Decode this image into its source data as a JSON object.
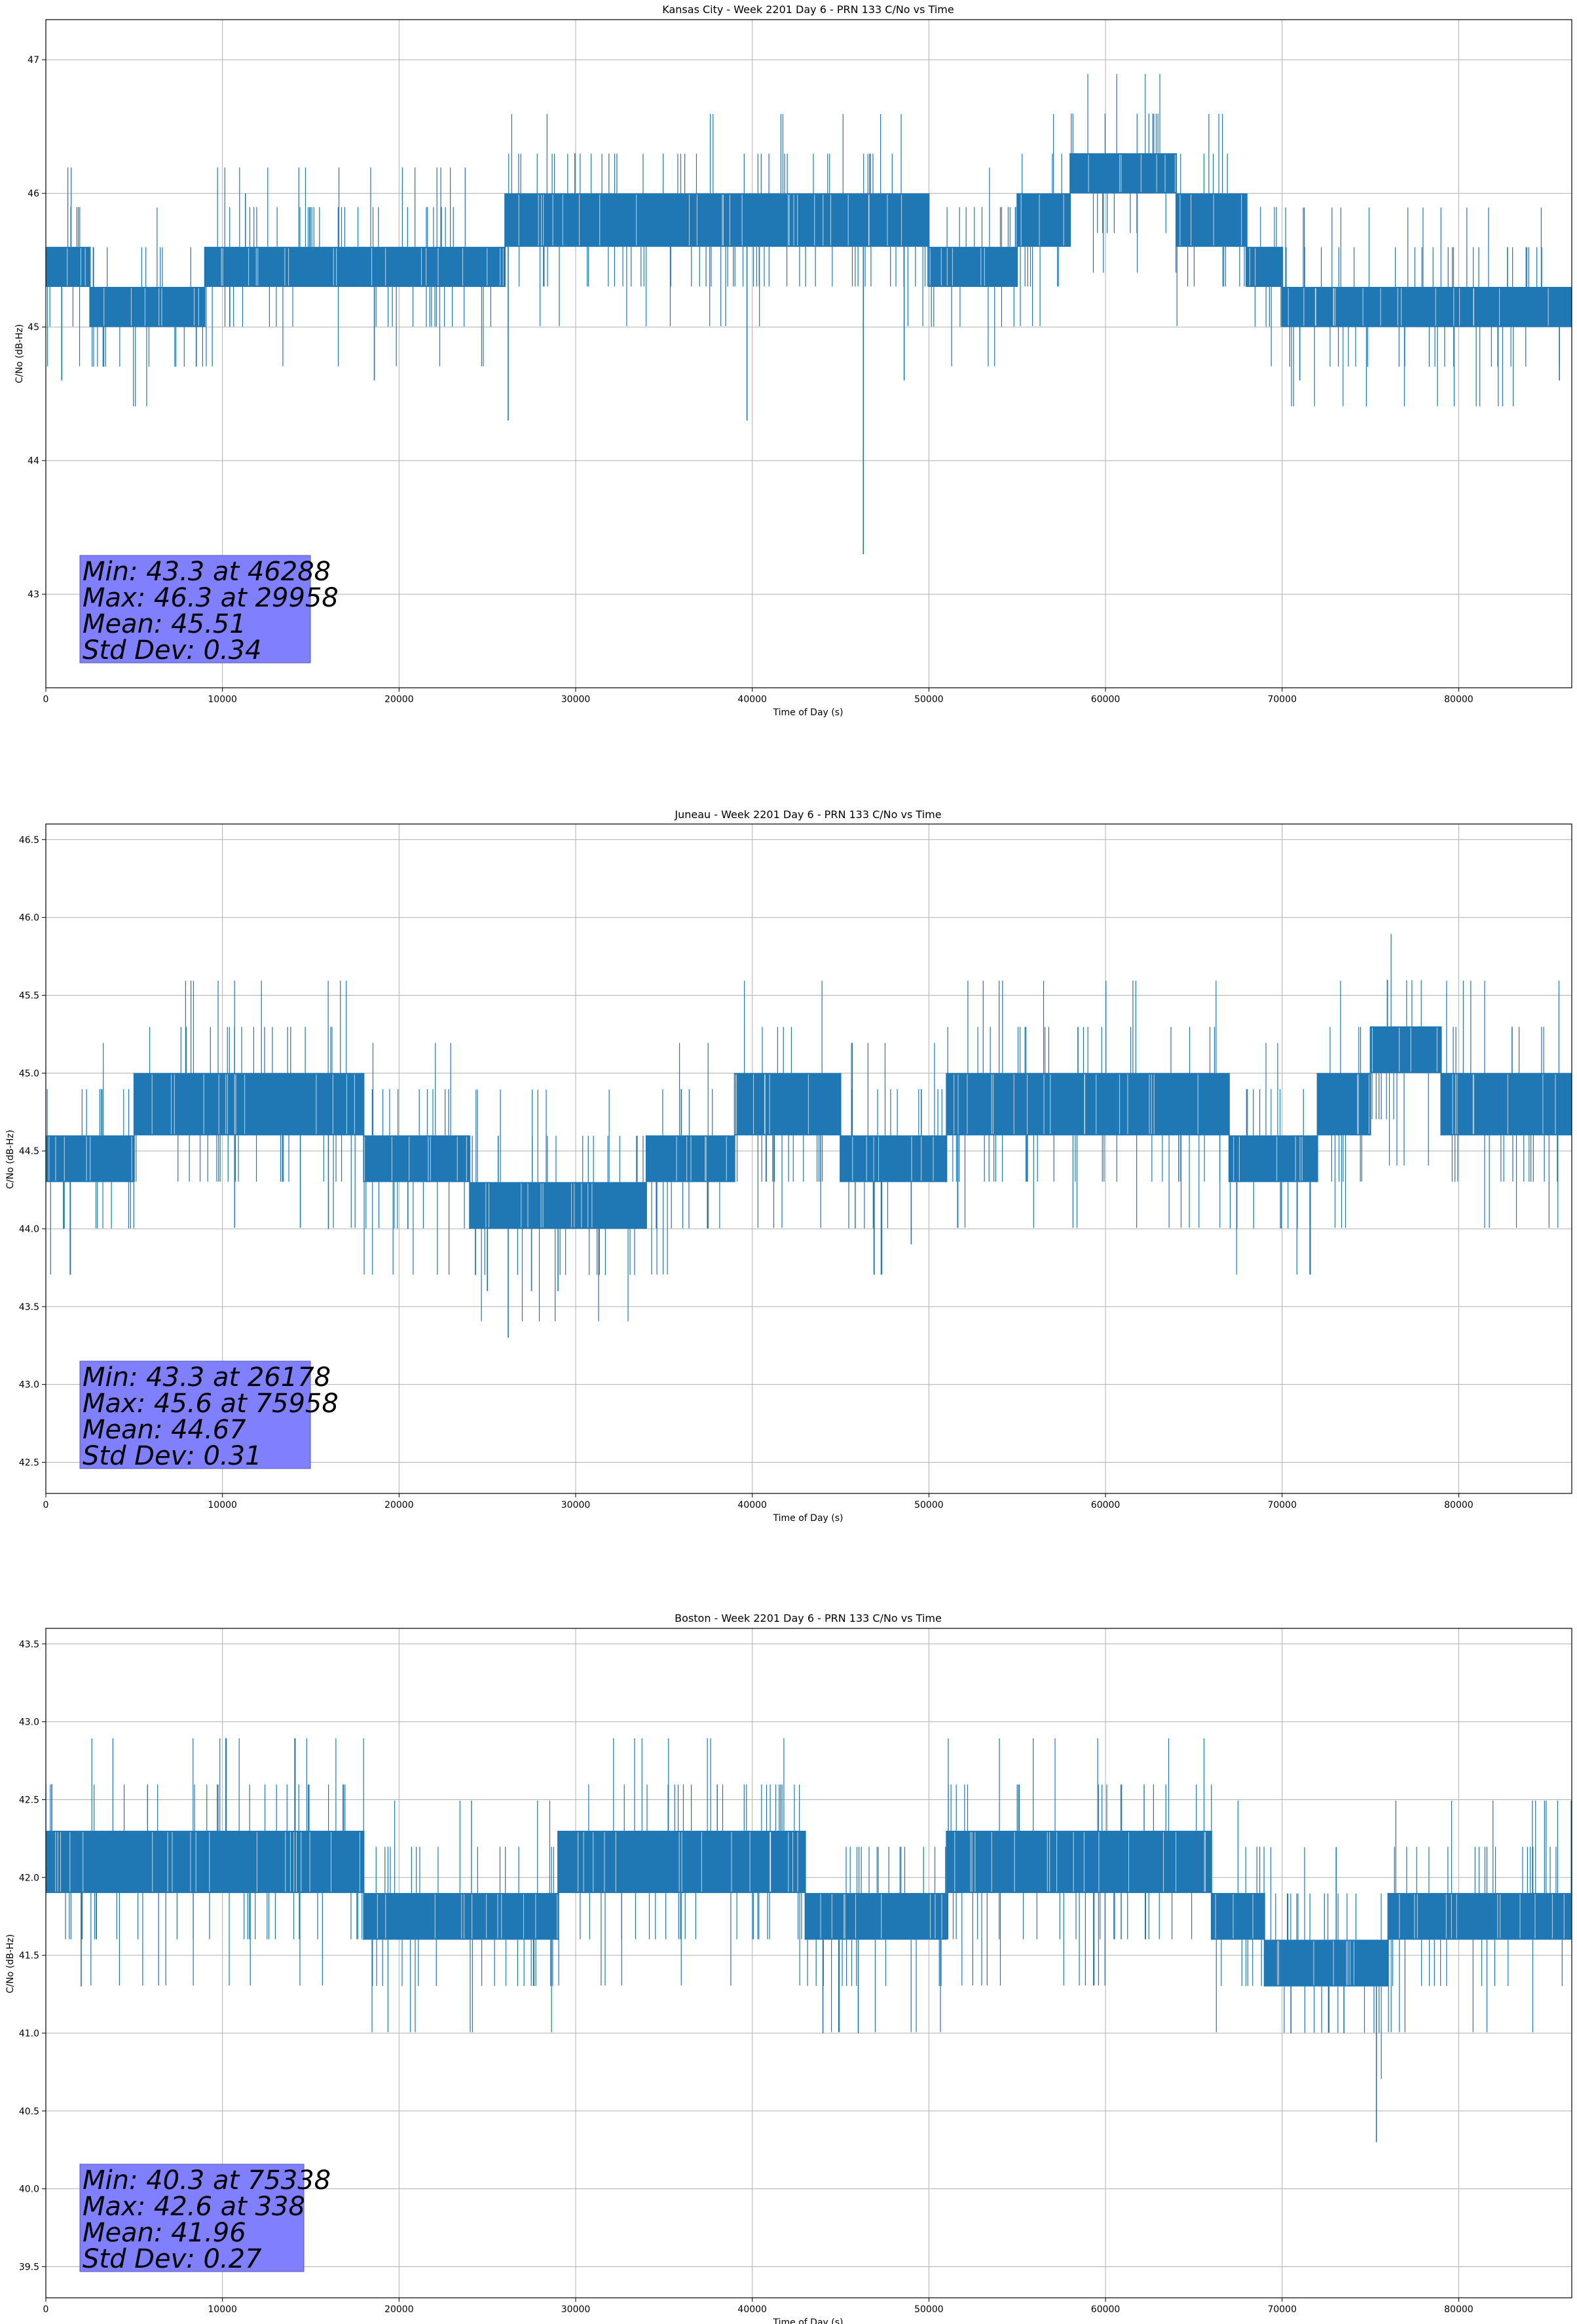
{
  "colors": {
    "series": "#1f77b4",
    "grid": "#b0b0b0",
    "stats_box": "#8080ff"
  },
  "chart_data": [
    {
      "type": "line",
      "title": "Kansas City - Week 2201 Day 6 - PRN 133 C/No vs Time",
      "xlabel": "Time of Day (s)",
      "ylabel": "C/No (dB-Hz)",
      "xlim": [
        0,
        86400
      ],
      "ylim": [
        42.3,
        47.3
      ],
      "xticks": [
        0,
        10000,
        20000,
        30000,
        40000,
        50000,
        60000,
        70000,
        80000
      ],
      "yticks": [
        43,
        44,
        45,
        46,
        47
      ],
      "ytick_decimals": 0,
      "grid": true,
      "stats": [
        "Min: 43.3 at 46288",
        "Max: 46.3 at 29958",
        "Mean: 45.51",
        "Std Dev: 0.34"
      ],
      "segments": [
        [
          0,
          2500,
          45.3,
          45.6
        ],
        [
          2500,
          9000,
          45.0,
          45.3
        ],
        [
          9000,
          17500,
          45.3,
          45.6
        ],
        [
          17500,
          26000,
          45.3,
          45.6
        ],
        [
          26000,
          34000,
          45.6,
          46.0
        ],
        [
          34000,
          50000,
          45.6,
          46.0
        ],
        [
          50000,
          55000,
          45.3,
          45.6
        ],
        [
          55000,
          58000,
          45.6,
          46.0
        ],
        [
          58000,
          64000,
          46.0,
          46.3
        ],
        [
          64000,
          68000,
          45.6,
          46.0
        ],
        [
          68000,
          70000,
          45.3,
          45.6
        ],
        [
          70000,
          86400,
          45.0,
          45.3
        ]
      ],
      "spikes": [
        [
          46288,
          43.3
        ],
        [
          29958,
          46.3
        ],
        [
          26178,
          44.3
        ],
        [
          39700,
          44.3
        ],
        [
          900,
          44.6
        ],
        [
          18600,
          44.6
        ],
        [
          48600,
          44.6
        ],
        [
          71000,
          44.6
        ],
        [
          85700,
          44.6
        ],
        [
          11300,
          46.0
        ]
      ]
    },
    {
      "type": "line",
      "title": "Juneau - Week 2201 Day 6 - PRN 133 C/No vs Time",
      "xlabel": "Time of Day (s)",
      "ylabel": "C/No (dB-Hz)",
      "xlim": [
        0,
        86400
      ],
      "ylim": [
        42.3,
        46.6
      ],
      "xticks": [
        0,
        10000,
        20000,
        30000,
        40000,
        50000,
        60000,
        70000,
        80000
      ],
      "yticks": [
        42.5,
        43.0,
        43.5,
        44.0,
        44.5,
        45.0,
        45.5,
        46.0,
        46.5
      ],
      "ytick_decimals": 1,
      "grid": true,
      "stats": [
        "Min: 43.3 at 26178",
        "Max: 45.6 at 75958",
        "Mean: 44.67",
        "Std Dev: 0.31"
      ],
      "segments": [
        [
          0,
          5000,
          44.3,
          44.6
        ],
        [
          5000,
          18000,
          44.6,
          45.0
        ],
        [
          18000,
          24000,
          44.3,
          44.6
        ],
        [
          24000,
          34000,
          44.0,
          44.3
        ],
        [
          34000,
          39000,
          44.3,
          44.6
        ],
        [
          39000,
          45000,
          44.6,
          45.0
        ],
        [
          45000,
          51000,
          44.3,
          44.6
        ],
        [
          51000,
          67000,
          44.6,
          45.0
        ],
        [
          67000,
          72000,
          44.3,
          44.6
        ],
        [
          72000,
          75000,
          44.6,
          45.0
        ],
        [
          75000,
          79000,
          45.0,
          45.3
        ],
        [
          79000,
          86400,
          44.6,
          45.0
        ]
      ],
      "spikes": [
        [
          26178,
          43.3
        ],
        [
          75958,
          45.6
        ],
        [
          25000,
          43.6
        ],
        [
          27500,
          43.6
        ],
        [
          29000,
          43.6
        ],
        [
          49000,
          43.9
        ],
        [
          1000,
          44.0
        ],
        [
          16000,
          44.0
        ],
        [
          20500,
          44.0
        ]
      ]
    },
    {
      "type": "line",
      "title": "Boston - Week 2201 Day 6 - PRN 133 C/No vs Time",
      "xlabel": "Time of Day (s)",
      "ylabel": "C/No (dB-Hz)",
      "xlim": [
        0,
        86400
      ],
      "ylim": [
        39.3,
        43.6
      ],
      "xticks": [
        0,
        10000,
        20000,
        30000,
        40000,
        50000,
        60000,
        70000,
        80000
      ],
      "yticks": [
        39.5,
        40.0,
        40.5,
        41.0,
        41.5,
        42.0,
        42.5,
        43.0,
        43.5
      ],
      "ytick_decimals": 1,
      "grid": true,
      "stats": [
        "Min: 40.3 at 75338",
        "Max: 42.6 at 338",
        "Mean: 41.96",
        "Std Dev: 0.27"
      ],
      "segments": [
        [
          0,
          18000,
          41.9,
          42.3
        ],
        [
          18000,
          29000,
          41.6,
          41.9
        ],
        [
          29000,
          43000,
          41.9,
          42.3
        ],
        [
          43000,
          51000,
          41.6,
          41.9
        ],
        [
          51000,
          66000,
          41.9,
          42.3
        ],
        [
          66000,
          69000,
          41.6,
          41.9
        ],
        [
          69000,
          76000,
          41.3,
          41.6
        ],
        [
          76000,
          86400,
          41.6,
          41.9
        ]
      ],
      "spikes": [
        [
          75338,
          40.3
        ],
        [
          338,
          42.6
        ],
        [
          2000,
          41.3
        ],
        [
          44000,
          41.0
        ],
        [
          46000,
          41.0
        ],
        [
          70500,
          41.0
        ],
        [
          73500,
          41.0
        ]
      ]
    }
  ]
}
